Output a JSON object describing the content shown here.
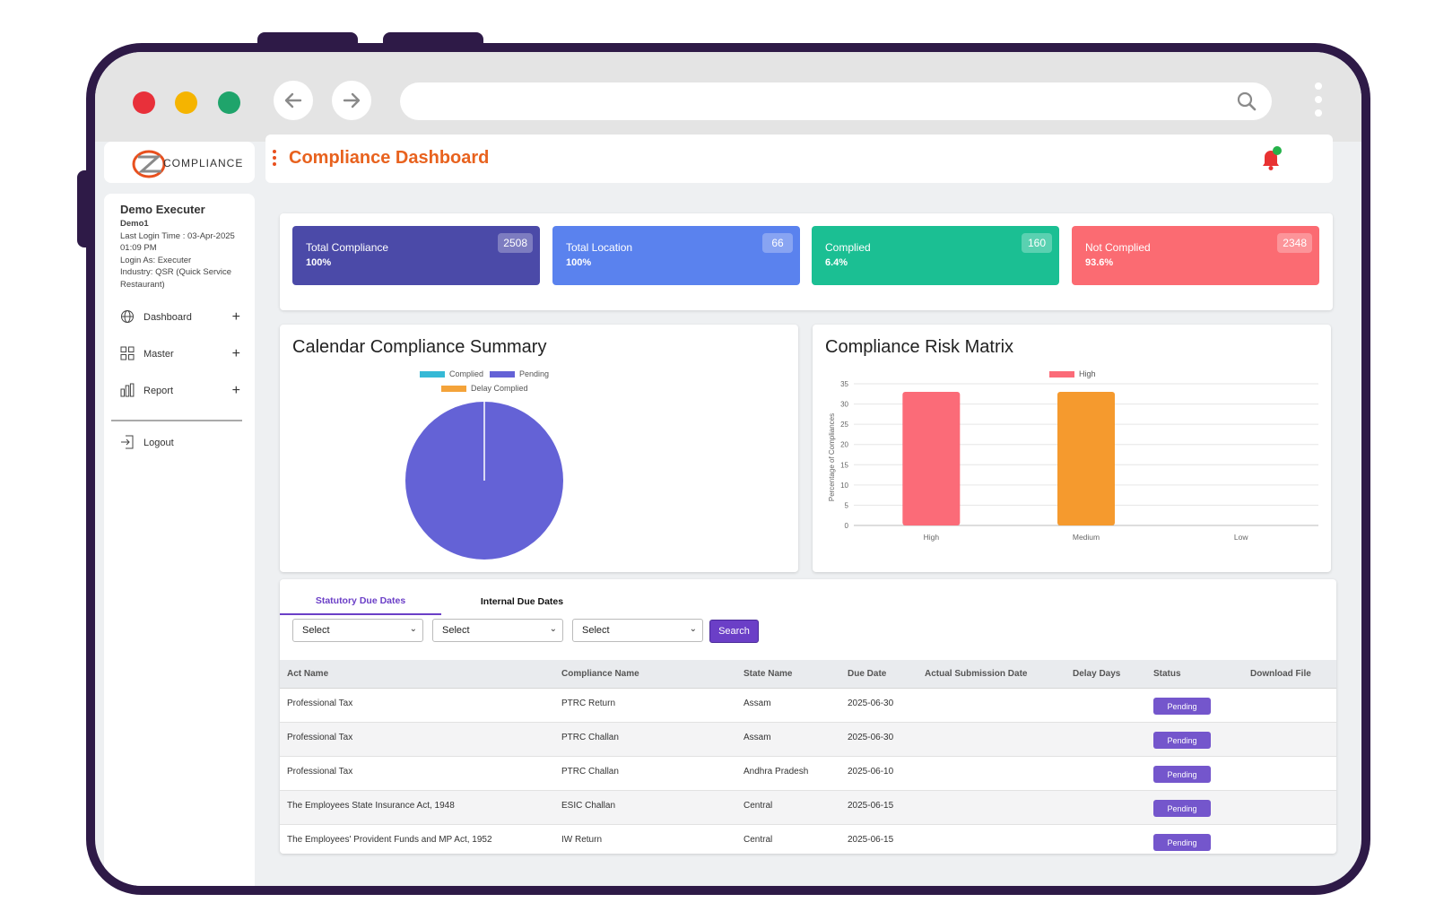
{
  "browser": {
    "traffic_lights": [
      "#e8303a",
      "#f5b400",
      "#1fa46b"
    ]
  },
  "logo": {
    "text": "COMPLIANCE"
  },
  "user": {
    "name": "Demo Executer",
    "id": "Demo1",
    "last_login": "Last Login Time : 03-Apr-2025 01:09 PM",
    "login_as": "Login As: Executer",
    "industry": "Industry: QSR (Quick Service Restaurant)"
  },
  "nav": {
    "dashboard": "Dashboard",
    "master": "Master",
    "report": "Report",
    "logout": "Logout"
  },
  "header": {
    "title": "Compliance Dashboard"
  },
  "cards": [
    {
      "label": "Total Compliance",
      "percent": "100%",
      "count": "2508",
      "color": "#4b4aa8"
    },
    {
      "label": "Total Location",
      "percent": "100%",
      "count": "66",
      "color": "#5a82ee"
    },
    {
      "label": "Complied",
      "percent": "6.4%",
      "count": "160",
      "color": "#1bbf93"
    },
    {
      "label": "Not Complied",
      "percent": "93.6%",
      "count": "2348",
      "color": "#fb6b72"
    }
  ],
  "calendar_chart": {
    "title": "Calendar Compliance Summary",
    "legend": [
      "Complied",
      "Pending",
      "Delay Complied"
    ],
    "colors": {
      "complied": "#36b9d6",
      "pending": "#6462d6",
      "delay": "#f4a33a"
    }
  },
  "risk_chart": {
    "title": "Compliance Risk Matrix",
    "legend": "High",
    "ylabel": "Percentage of Compliances",
    "yticks": [
      "0",
      "5",
      "10",
      "15",
      "20",
      "25",
      "30",
      "35"
    ],
    "xticks": [
      "High",
      "Medium",
      "Low"
    ]
  },
  "chart_data": [
    {
      "type": "pie",
      "title": "Calendar Compliance Summary",
      "categories": [
        "Complied",
        "Pending",
        "Delay Complied"
      ],
      "values": [
        0,
        100,
        0
      ]
    },
    {
      "type": "bar",
      "title": "Compliance Risk Matrix",
      "categories": [
        "High",
        "Medium",
        "Low"
      ],
      "values": [
        33,
        33,
        0
      ],
      "colors": [
        "#fb6b78",
        "#f59a2e",
        "#cccccc"
      ],
      "ylabel": "Percentage of Compliances",
      "ylim": [
        0,
        35
      ],
      "legend": [
        "High"
      ]
    }
  ],
  "tabs": {
    "statutory": "Statutory Due Dates",
    "internal": "Internal Due Dates"
  },
  "filters": {
    "select1": "Select",
    "select2": "Select",
    "select3": "Select",
    "search": "Search"
  },
  "table": {
    "headers": [
      "Act Name",
      "Compliance Name",
      "State Name",
      "Due Date",
      "Actual Submission Date",
      "Delay Days",
      "Status",
      "Download File"
    ],
    "rows": [
      {
        "act": "Professional Tax",
        "compliance": "PTRC Return",
        "state": "Assam",
        "due": "2025-06-30",
        "status": "Pending"
      },
      {
        "act": "Professional Tax",
        "compliance": "PTRC Challan",
        "state": "Assam",
        "due": "2025-06-30",
        "status": "Pending"
      },
      {
        "act": "Professional Tax",
        "compliance": "PTRC Challan",
        "state": "Andhra Pradesh",
        "due": "2025-06-10",
        "status": "Pending"
      },
      {
        "act": "The Employees State Insurance Act, 1948",
        "compliance": "ESIC Challan",
        "state": "Central",
        "due": "2025-06-15",
        "status": "Pending"
      },
      {
        "act": "The Employees' Provident Funds and MP Act, 1952",
        "compliance": "IW Return",
        "state": "Central",
        "due": "2025-06-15",
        "status": "Pending"
      }
    ]
  }
}
